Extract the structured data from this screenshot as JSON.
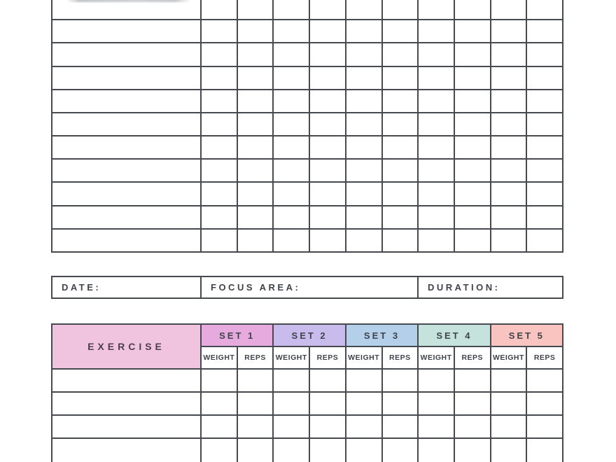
{
  "document": {
    "type": "workout-log-template"
  },
  "colors": {
    "page_bg": "#ffffff",
    "grid_border": "#46494f",
    "label_text": "#3f444b",
    "exercise_header_text": "#4f3f4e",
    "exercise_header_bg": "#f0c3df",
    "cell_bg": "#ffffff"
  },
  "top_grid": {
    "visible_rows": 11,
    "name_columns": 1,
    "tracking_columns": 10
  },
  "info_bar": {
    "fields": [
      {
        "label": "DATE:"
      },
      {
        "label": "FOCUS AREA:"
      },
      {
        "label": "DURATION:"
      }
    ]
  },
  "workout_table": {
    "exercise_header": "EXERCISE",
    "set_headers": [
      {
        "label": "SET 1",
        "color": "#e6aadf"
      },
      {
        "label": "SET 2",
        "color": "#c9bcec"
      },
      {
        "label": "SET 3",
        "color": "#b4cfe9"
      },
      {
        "label": "SET 4",
        "color": "#c5e3dc"
      },
      {
        "label": "SET 5",
        "color": "#f9c3bf"
      }
    ],
    "sub_headers": [
      "WEIGHT",
      "REPS"
    ],
    "visible_data_rows": 4
  }
}
